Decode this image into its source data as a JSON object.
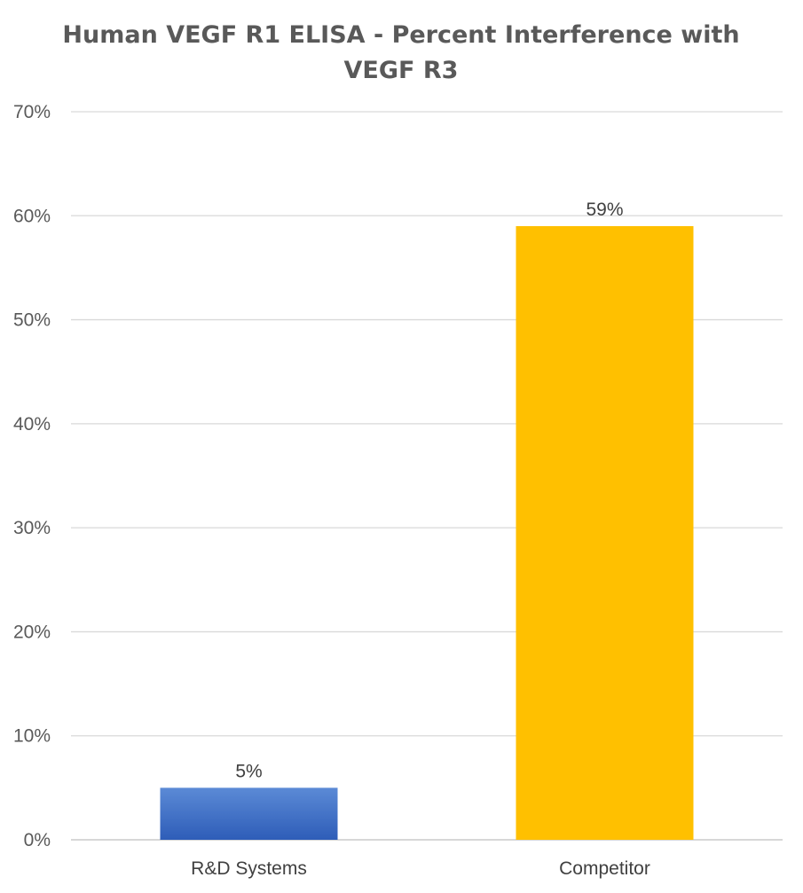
{
  "chart_data": {
    "type": "bar",
    "title_lines": [
      "Human VEGF R1 ELISA - Percent Interference with",
      "VEGF R3"
    ],
    "categories": [
      "R&D Systems",
      "Competitor"
    ],
    "values": [
      5,
      59
    ],
    "data_labels": [
      "5%",
      "59%"
    ],
    "bar_colors": [
      "#4472C4",
      "#FFC000"
    ],
    "ylim": [
      0,
      70
    ],
    "yticks": [
      0,
      10,
      20,
      30,
      40,
      50,
      60,
      70
    ],
    "ytick_labels": [
      "0%",
      "10%",
      "20%",
      "30%",
      "40%",
      "50%",
      "60%",
      "70%"
    ],
    "grid": true,
    "legend": "none"
  }
}
